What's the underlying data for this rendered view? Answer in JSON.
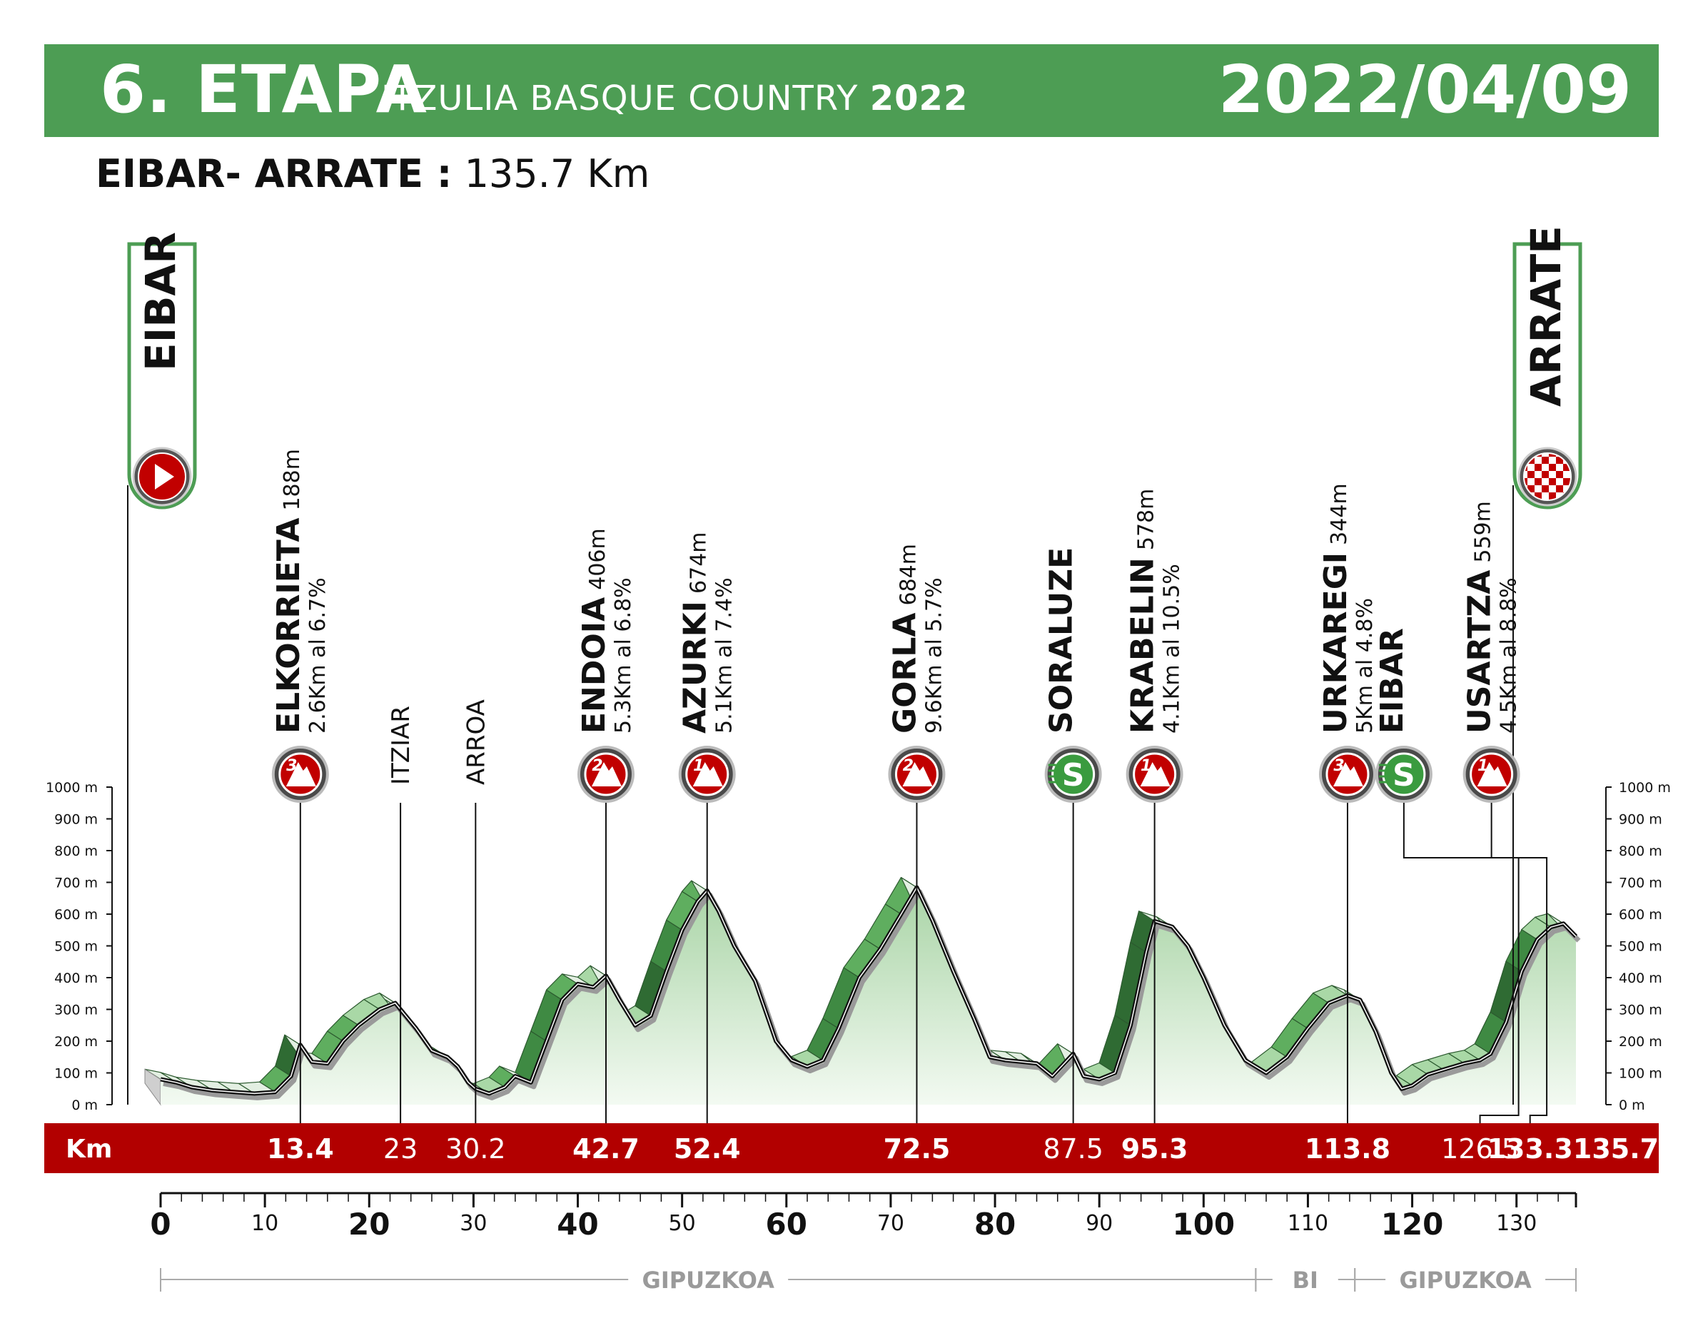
{
  "header": {
    "stage": "6. ETAPA",
    "race_name": "ITZULIA BASQUE COUNTRY",
    "race_year": "2022",
    "date": "2022/04/09"
  },
  "route": {
    "title": "EIBAR- ARRATE :",
    "distance": "135.7 Km"
  },
  "colors": {
    "header_green": "#4d9d54",
    "km_bar_red": "#b20000",
    "climb_badge_red": "#c10000",
    "sprint_green": "#3a9b3f",
    "profile_fill": "#cfe6cf",
    "gradient_light": "#a9d8a6",
    "gradient_mid": "#5fae5f",
    "gradient_dark": "#2f6b33"
  },
  "chart_data": {
    "type": "area",
    "title": "EIBAR- ARRATE : 135.7 Km",
    "xlabel": "Km",
    "ylabel": "",
    "xlim": [
      0,
      135.7
    ],
    "ylim": [
      0,
      1000
    ],
    "y_ticks": [
      "1000 m",
      "900 m",
      "800 m",
      "700 m",
      "600 m",
      "500 m",
      "400 m",
      "300 m",
      "200 m",
      "100 m",
      "0 m"
    ],
    "x_ticks_major": [
      "0",
      "20",
      "40",
      "60",
      "80",
      "100",
      "120"
    ],
    "x_ticks_minor": [
      "10",
      "30",
      "50",
      "70",
      "90",
      "110",
      "130"
    ],
    "start": "EIBAR",
    "finish": "ARRATE",
    "profile": [
      [
        0,
        80
      ],
      [
        1.5,
        70
      ],
      [
        3,
        55
      ],
      [
        5,
        45
      ],
      [
        7,
        40
      ],
      [
        9,
        35
      ],
      [
        11,
        40
      ],
      [
        12.5,
        90
      ],
      [
        13.4,
        188
      ],
      [
        14.5,
        135
      ],
      [
        16,
        130
      ],
      [
        17.5,
        200
      ],
      [
        19,
        250
      ],
      [
        21,
        300
      ],
      [
        22.5,
        320
      ],
      [
        23,
        300
      ],
      [
        24.5,
        240
      ],
      [
        26,
        170
      ],
      [
        27.5,
        150
      ],
      [
        28.5,
        120
      ],
      [
        29.5,
        70
      ],
      [
        30.2,
        50
      ],
      [
        31.5,
        35
      ],
      [
        33,
        55
      ],
      [
        34,
        90
      ],
      [
        35.5,
        70
      ],
      [
        37,
        200
      ],
      [
        38.5,
        330
      ],
      [
        40,
        380
      ],
      [
        41.5,
        370
      ],
      [
        42.7,
        406
      ],
      [
        44,
        330
      ],
      [
        45.5,
        250
      ],
      [
        47,
        280
      ],
      [
        48.5,
        420
      ],
      [
        50,
        550
      ],
      [
        51.5,
        640
      ],
      [
        52.4,
        674
      ],
      [
        53.5,
        610
      ],
      [
        55,
        500
      ],
      [
        57,
        390
      ],
      [
        59,
        200
      ],
      [
        60.5,
        140
      ],
      [
        62,
        120
      ],
      [
        63.5,
        140
      ],
      [
        65,
        240
      ],
      [
        67,
        400
      ],
      [
        69,
        490
      ],
      [
        71,
        600
      ],
      [
        72.5,
        684
      ],
      [
        74,
        580
      ],
      [
        76,
        420
      ],
      [
        78,
        270
      ],
      [
        79.5,
        150
      ],
      [
        81,
        140
      ],
      [
        82.5,
        135
      ],
      [
        84,
        130
      ],
      [
        85.5,
        90
      ],
      [
        87.5,
        160
      ],
      [
        88.5,
        90
      ],
      [
        90,
        80
      ],
      [
        91.5,
        100
      ],
      [
        93,
        250
      ],
      [
        94.5,
        480
      ],
      [
        95.3,
        578
      ],
      [
        97,
        560
      ],
      [
        98.5,
        500
      ],
      [
        100,
        400
      ],
      [
        102,
        250
      ],
      [
        104,
        140
      ],
      [
        106,
        100
      ],
      [
        108,
        150
      ],
      [
        110,
        240
      ],
      [
        112,
        320
      ],
      [
        113.8,
        344
      ],
      [
        115,
        330
      ],
      [
        116.5,
        230
      ],
      [
        118,
        100
      ],
      [
        119,
        50
      ],
      [
        120,
        60
      ],
      [
        121.5,
        95
      ],
      [
        123,
        110
      ],
      [
        125,
        130
      ],
      [
        126.5,
        140
      ],
      [
        127.5,
        160
      ],
      [
        129,
        260
      ],
      [
        130.5,
        420
      ],
      [
        132,
        520
      ],
      [
        133.3,
        559
      ],
      [
        134.5,
        570
      ],
      [
        135.7,
        530
      ]
    ],
    "points": [
      {
        "km": "13.4",
        "name": "ELKORRIETA",
        "elev": "188m",
        "detail": "2.6Km al 6.7%",
        "badge": "3",
        "kind": "climb",
        "bold": true
      },
      {
        "km": "23",
        "name": "ITZIAR",
        "elev": "",
        "detail": "",
        "badge": "",
        "kind": "place",
        "bold": false
      },
      {
        "km": "30.2",
        "name": "ARROA",
        "elev": "",
        "detail": "",
        "badge": "",
        "kind": "place",
        "bold": false
      },
      {
        "km": "42.7",
        "name": "ENDOIA",
        "elev": "406m",
        "detail": "5.3Km al 6.8%",
        "badge": "2",
        "kind": "climb",
        "bold": true
      },
      {
        "km": "52.4",
        "name": "AZURKI",
        "elev": "674m",
        "detail": "5.1Km al 7.4%",
        "badge": "1",
        "kind": "climb",
        "bold": true
      },
      {
        "km": "72.5",
        "name": "GORLA",
        "elev": "684m",
        "detail": "9.6Km al 5.7%",
        "badge": "2",
        "kind": "climb",
        "bold": true
      },
      {
        "km": "87.5",
        "name": "SORALUZE",
        "elev": "",
        "detail": "",
        "badge": "S",
        "kind": "sprint",
        "bold": false
      },
      {
        "km": "95.3",
        "name": "KRABELIN",
        "elev": "578m",
        "detail": "4.1Km al 10.5%",
        "badge": "1",
        "kind": "climb",
        "bold": true
      },
      {
        "km": "113.8",
        "name": "URKAREGI",
        "elev": "344m",
        "detail": "5Km al 4.8%",
        "badge": "3",
        "kind": "climb",
        "bold": true
      },
      {
        "km": "126.5",
        "name": "EIBAR",
        "elev": "",
        "detail": "",
        "badge": "S",
        "kind": "sprint",
        "bold": false
      },
      {
        "km": "133.3",
        "name": "USARTZA",
        "elev": "559m",
        "detail": "4.5Km al 8.8%",
        "badge": "1",
        "kind": "climb",
        "bold": true
      },
      {
        "km": "135.7",
        "name": "",
        "elev": "",
        "detail": "",
        "badge": "",
        "kind": "finish",
        "bold": true
      }
    ],
    "regions": [
      {
        "label": "GIPUZKOA",
        "from": 0,
        "to": 105
      },
      {
        "label": "BI",
        "from": 105,
        "to": 114.5
      },
      {
        "label": "GIPUZKOA",
        "from": 114.5,
        "to": 135.7
      }
    ],
    "grid": false
  }
}
